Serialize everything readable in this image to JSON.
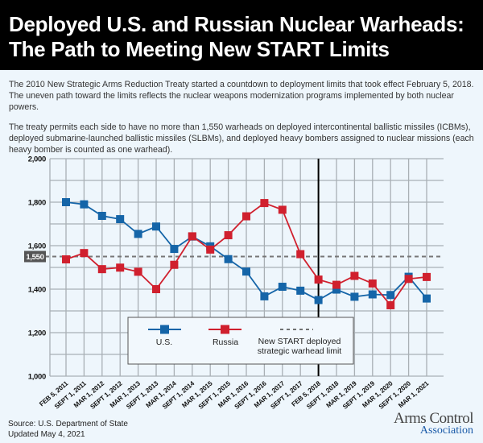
{
  "header": {
    "title_line1": "Deployed U.S. and Russian Nuclear Warheads:",
    "title_line2": "The Path to Meeting New START Limits"
  },
  "intro": {
    "paragraph1": "The 2010 New Strategic Arms Reduction Treaty started a countdown to deployment limits that took effect February 5, 2018. The uneven path toward the limits reflects the nuclear weapons modernization programs implemented by both nuclear powers.",
    "paragraph2": "The treaty permits each side to have no more than 1,550 warheads on deployed intercontinental ballistic missiles (ICBMs), deployed submarine-launched ballistic missiles (SLBMs), and deployed heavy bombers assigned to nuclear missions (each heavy bomber is counted as one warhead)."
  },
  "footer": {
    "source": "Source: U.S. Department of State",
    "updated": "Updated May 4, 2021",
    "logo_line1": "Arms Control",
    "logo_line2": "Association"
  },
  "colors": {
    "us": "#1565a8",
    "russia": "#d0202e",
    "grid": "#a9b0b5",
    "limit": "#777777",
    "background": "#eef6fc"
  },
  "chart_data": {
    "type": "line",
    "title": "Deployed U.S. and Russian Nuclear Warheads",
    "xlabel": "",
    "ylabel": "",
    "ylim": [
      1000,
      2000
    ],
    "yticks": [
      1000,
      1200,
      1400,
      1600,
      1800,
      2000
    ],
    "ytick_labels": [
      "1,000",
      "1,200",
      "1,400",
      "1,600",
      "1,800",
      "2,000"
    ],
    "grid": true,
    "categories": [
      "FEB 5, 2011",
      "SEPT 1, 2011",
      "MAR 1, 2012",
      "SEPT 1, 2012",
      "MAR 1, 2013",
      "SEPT 1, 2013",
      "MAR 1, 2014",
      "SEPT 1, 2014",
      "MAR 1, 2015",
      "SEPT 1, 2015",
      "MAR 1, 2016",
      "SEPT 1, 2016",
      "MAR 1, 2017",
      "SEPT 1, 2017",
      "FEB 5, 2018",
      "SEPT 1, 2018",
      "MAR 1, 2019",
      "SEPT 1, 2019",
      "MAR 1, 2020",
      "SEPT 1, 2020",
      "MAR 1, 2021"
    ],
    "series": [
      {
        "name": "U.S.",
        "color": "#1565a8",
        "values": [
          1800,
          1790,
          1737,
          1722,
          1654,
          1688,
          1585,
          1642,
          1597,
          1538,
          1481,
          1367,
          1411,
          1393,
          1350,
          1398,
          1365,
          1376,
          1373,
          1457,
          1357
        ]
      },
      {
        "name": "Russia",
        "color": "#d0202e",
        "values": [
          1537,
          1566,
          1492,
          1499,
          1480,
          1400,
          1512,
          1643,
          1582,
          1648,
          1735,
          1796,
          1765,
          1561,
          1444,
          1420,
          1461,
          1426,
          1326,
          1447,
          1456
        ]
      }
    ],
    "limit": {
      "value": 1550,
      "label": "1,550",
      "legend_label": "New START deployed strategic warhead limit",
      "legend_line1": "New START deployed",
      "legend_line2": "strategic warhead limit"
    },
    "deadline_marker": "FEB 5, 2018",
    "legend": {
      "placement": "bottom-center",
      "entries": [
        "U.S.",
        "Russia",
        "New START deployed strategic warhead limit"
      ]
    }
  }
}
